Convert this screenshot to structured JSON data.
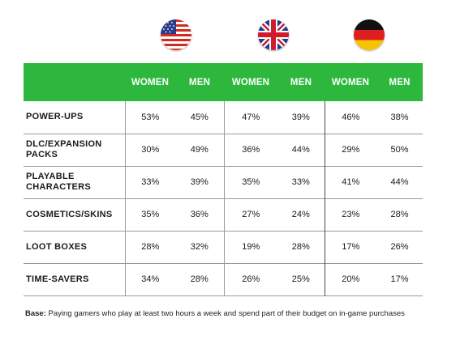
{
  "flags": [
    {
      "country": "United States",
      "icon": "us-flag-icon"
    },
    {
      "country": "United Kingdom",
      "icon": "uk-flag-icon"
    },
    {
      "country": "Germany",
      "icon": "germany-flag-icon"
    }
  ],
  "colors": {
    "header_green": "#2db83d"
  },
  "table": {
    "columns": [
      "",
      "WOMEN",
      "MEN",
      "WOMEN",
      "MEN",
      "WOMEN",
      "MEN"
    ],
    "rows": [
      {
        "label": "POWER-UPS",
        "values": [
          "53%",
          "45%",
          "47%",
          "39%",
          "46%",
          "38%"
        ]
      },
      {
        "label": "DLC/EXPANSION PACKS",
        "values": [
          "30%",
          "49%",
          "36%",
          "44%",
          "29%",
          "50%"
        ]
      },
      {
        "label": "PLAYABLE CHARACTERS",
        "values": [
          "33%",
          "39%",
          "35%",
          "33%",
          "41%",
          "44%"
        ]
      },
      {
        "label": "COSMETICS/SKINS",
        "values": [
          "35%",
          "36%",
          "27%",
          "24%",
          "23%",
          "28%"
        ]
      },
      {
        "label": "LOOT BOXES",
        "values": [
          "28%",
          "32%",
          "19%",
          "28%",
          "17%",
          "26%"
        ]
      },
      {
        "label": "TIME-SAVERS",
        "values": [
          "34%",
          "28%",
          "26%",
          "25%",
          "20%",
          "17%"
        ]
      }
    ]
  },
  "footnote": {
    "bold": "Base:",
    "text": " Paying gamers who play at least two hours a week and spend part of their budget on in-game purchases"
  }
}
